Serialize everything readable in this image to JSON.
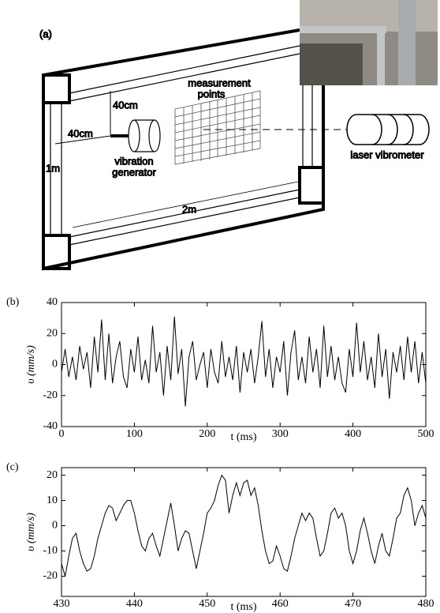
{
  "figure": {
    "a": {
      "label": "(a)",
      "measurement_points": [
        "measurement",
        "points"
      ],
      "vertical_offset": "40cm",
      "horizontal_offset": "40cm",
      "height": "1m",
      "width": "2m",
      "generator": [
        "vibration",
        "generator"
      ],
      "vibrometer": "laser vibrometer"
    }
  },
  "chart_data": [
    {
      "type": "line",
      "panel_label": "(b)",
      "xlabel": "t (ms)",
      "ylabel": "υ (mm/s)",
      "x": [
        0,
        5,
        10,
        15,
        20,
        25,
        30,
        35,
        40,
        45,
        50,
        55,
        60,
        65,
        70,
        75,
        80,
        85,
        90,
        95,
        100,
        105,
        110,
        115,
        120,
        125,
        130,
        135,
        140,
        145,
        150,
        155,
        160,
        165,
        170,
        175,
        180,
        185,
        190,
        195,
        200,
        205,
        210,
        215,
        220,
        225,
        230,
        235,
        240,
        245,
        250,
        255,
        260,
        265,
        270,
        275,
        280,
        285,
        290,
        295,
        300,
        305,
        310,
        315,
        320,
        325,
        330,
        335,
        340,
        345,
        350,
        355,
        360,
        365,
        370,
        375,
        380,
        385,
        390,
        395,
        400,
        405,
        410,
        415,
        420,
        425,
        430,
        435,
        440,
        445,
        450,
        455,
        460,
        465,
        470,
        475,
        480,
        485,
        490,
        495,
        500
      ],
      "series": [
        {
          "color": "#000000",
          "values": [
            -5,
            10,
            -8,
            5,
            -10,
            12,
            -3,
            8,
            -15,
            18,
            -5,
            29,
            -10,
            20,
            -12,
            5,
            15,
            -8,
            -15,
            10,
            -5,
            18,
            -10,
            3,
            -12,
            25,
            -5,
            8,
            -20,
            12,
            -10,
            31,
            -6,
            10,
            -27,
            5,
            15,
            -10,
            0,
            8,
            -15,
            10,
            -5,
            -12,
            15,
            -8,
            5,
            -10,
            12,
            -18,
            8,
            -5,
            10,
            -12,
            5,
            28,
            -8,
            10,
            -15,
            5,
            -5,
            15,
            -20,
            8,
            22,
            -10,
            5,
            -12,
            18,
            -5,
            10,
            -15,
            25,
            -8,
            12,
            -10,
            5,
            -12,
            -18,
            10,
            -8,
            27,
            -5,
            15,
            -10,
            5,
            -15,
            20,
            -8,
            10,
            -22,
            8,
            -5,
            12,
            -10,
            18,
            -5,
            15,
            -12,
            8,
            -12
          ]
        }
      ],
      "xlim": [
        0,
        500
      ],
      "ylim": [
        -40,
        40
      ],
      "xticks": [
        0,
        100,
        200,
        300,
        400,
        500
      ],
      "yticks": [
        -40,
        -20,
        0,
        20,
        40
      ]
    },
    {
      "type": "line",
      "panel_label": "(c)",
      "xlabel": "t (ms)",
      "ylabel": "υ (mm/s)",
      "x": [
        430,
        430.5,
        431,
        431.5,
        432,
        432.5,
        433,
        433.5,
        434,
        434.5,
        435,
        435.5,
        436,
        436.5,
        437,
        437.5,
        438,
        438.5,
        439,
        439.5,
        440,
        440.5,
        441,
        441.5,
        442,
        442.5,
        443,
        443.5,
        444,
        444.5,
        445,
        445.5,
        446,
        446.5,
        447,
        447.5,
        448,
        448.5,
        449,
        449.5,
        450,
        450.5,
        451,
        451.5,
        452,
        452.5,
        453,
        453.5,
        454,
        454.5,
        455,
        455.5,
        456,
        456.5,
        457,
        457.5,
        458,
        458.5,
        459,
        459.5,
        460,
        460.5,
        461,
        461.5,
        462,
        462.5,
        463,
        463.5,
        464,
        464.5,
        465,
        465.5,
        466,
        466.5,
        467,
        467.5,
        468,
        468.5,
        469,
        469.5,
        470,
        470.5,
        471,
        471.5,
        472,
        472.5,
        473,
        473.5,
        474,
        474.5,
        475,
        475.5,
        476,
        476.5,
        477,
        477.5,
        478,
        478.5,
        479,
        479.5,
        480
      ],
      "series": [
        {
          "color": "#000000",
          "values": [
            -15,
            -20,
            -12,
            -5,
            -3,
            -10,
            -15,
            -18,
            -17,
            -12,
            -5,
            0,
            5,
            8,
            7,
            2,
            5,
            8,
            10,
            10,
            5,
            -2,
            -8,
            -10,
            -5,
            -3,
            -8,
            -12,
            -5,
            2,
            9,
            0,
            -10,
            -5,
            -2,
            -3,
            -10,
            -17,
            -10,
            -3,
            5,
            7,
            10,
            16,
            20,
            18,
            5,
            12,
            17,
            12,
            17,
            18,
            12,
            15,
            8,
            -2,
            -10,
            -15,
            -14,
            -8,
            -12,
            -17,
            -18,
            -12,
            -5,
            0,
            5,
            2,
            5,
            3,
            -5,
            -12,
            -10,
            -3,
            5,
            7,
            3,
            5,
            0,
            -10,
            -15,
            -10,
            -2,
            3,
            -3,
            -10,
            -15,
            -8,
            -3,
            -10,
            -12,
            -5,
            3,
            5,
            12,
            15,
            10,
            0,
            5,
            8,
            3
          ]
        }
      ],
      "xlim": [
        430,
        480
      ],
      "ylim": [
        -28,
        23
      ],
      "xticks": [
        430,
        440,
        450,
        460,
        470,
        480
      ],
      "yticks": [
        -20,
        -10,
        0,
        10,
        20
      ]
    }
  ]
}
